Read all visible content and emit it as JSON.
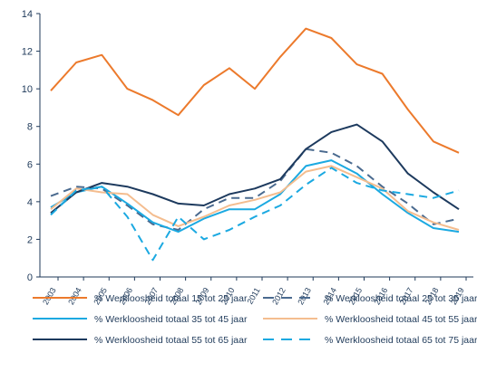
{
  "chart_data": {
    "type": "line",
    "title": "",
    "xlabel": "",
    "ylabel": "",
    "ylim": [
      0,
      14
    ],
    "yticks": [
      "0",
      "2",
      "4",
      "6",
      "8",
      "10",
      "12",
      "14"
    ],
    "categories": [
      "2003",
      "2004",
      "2005",
      "2006",
      "2007",
      "2008",
      "2009",
      "2010",
      "2011",
      "2012",
      "2013",
      "2014",
      "2015",
      "2016",
      "2017",
      "2018",
      "2019"
    ],
    "grid": false,
    "legend_placement": "bottom",
    "series": [
      {
        "name": "% Werkloosheid totaal 15 tot 25 jaar",
        "color": "#ec7a2c",
        "dash": "solid",
        "values": [
          9.9,
          11.4,
          11.8,
          10.0,
          9.4,
          8.6,
          10.2,
          11.1,
          10.0,
          11.7,
          13.2,
          12.7,
          11.3,
          10.8,
          8.9,
          7.2,
          6.6
        ]
      },
      {
        "name": "% Werkloosheid totaal 25 tot 35 jaar",
        "color": "#4a6a8f",
        "dash": "dash",
        "values": [
          4.3,
          4.8,
          4.7,
          3.8,
          2.8,
          2.5,
          3.6,
          4.2,
          4.2,
          5.1,
          6.8,
          6.6,
          5.9,
          4.8,
          3.9,
          2.8,
          3.1
        ]
      },
      {
        "name": "% Werkloosheid totaal 35 tot 45 jaar",
        "color": "#1ba9e1",
        "dash": "solid",
        "values": [
          3.7,
          4.5,
          4.8,
          3.9,
          2.9,
          2.4,
          3.1,
          3.6,
          3.6,
          4.4,
          5.9,
          6.2,
          5.5,
          4.4,
          3.4,
          2.6,
          2.4
        ]
      },
      {
        "name": "% Werkloosheid totaal 45 tot 55 jaar",
        "color": "#f4bd8f",
        "dash": "solid",
        "values": [
          3.6,
          4.7,
          4.5,
          4.4,
          3.3,
          2.7,
          3.2,
          3.8,
          4.1,
          4.5,
          5.6,
          5.9,
          5.3,
          4.7,
          3.5,
          2.9,
          2.5
        ]
      },
      {
        "name": "% Werkloosheid totaal 55 tot 65 jaar",
        "color": "#1d3a5e",
        "dash": "solid",
        "values": [
          3.4,
          4.5,
          5.0,
          4.8,
          4.4,
          3.9,
          3.8,
          4.4,
          4.7,
          5.2,
          6.8,
          7.7,
          8.1,
          7.2,
          5.5,
          4.5,
          3.6
        ]
      },
      {
        "name": "% Werkloosheid totaal 65 tot 75 jaar",
        "color": "#1ba9e1",
        "dash": "dash",
        "values": [
          3.3,
          4.6,
          4.8,
          3.2,
          0.9,
          3.2,
          2.0,
          2.5,
          3.2,
          3.8,
          4.9,
          5.8,
          5.0,
          4.6,
          4.4,
          4.2,
          4.6
        ]
      }
    ]
  }
}
